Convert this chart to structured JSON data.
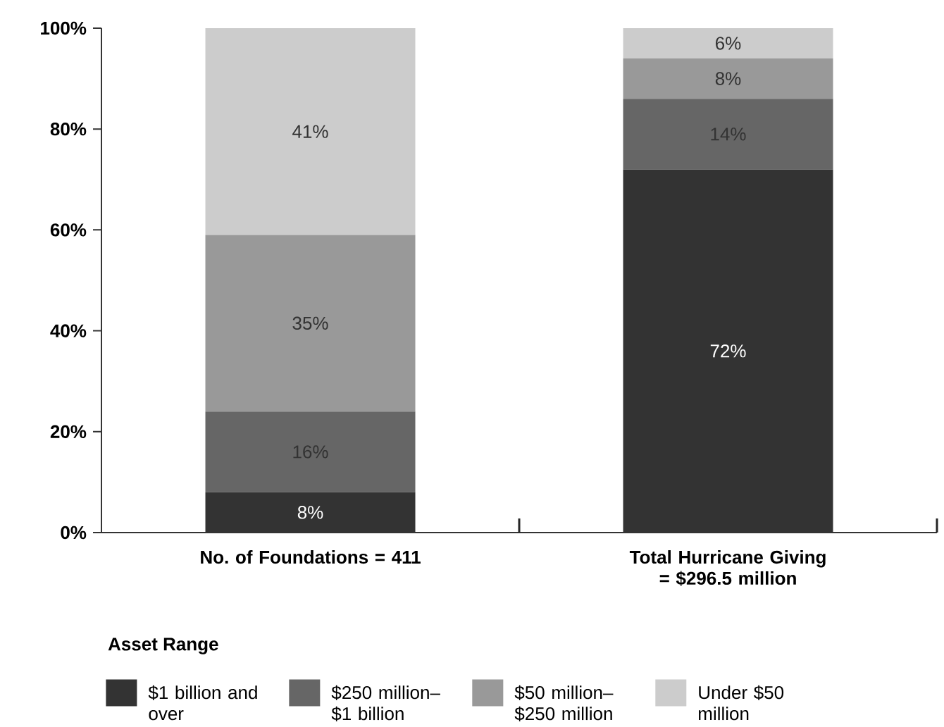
{
  "chart_data": {
    "type": "bar",
    "stacked": true,
    "categories": [
      "No. of Foundations = 411",
      "Total Hurricane Giving = $296.5 million"
    ],
    "series": [
      {
        "name": "$1 billion and over",
        "color": "#333333",
        "values": [
          8,
          72
        ],
        "value_labels": [
          "8%",
          "72%"
        ]
      },
      {
        "name": "$250 million– $1 billion",
        "color": "#666666",
        "values": [
          16,
          14
        ],
        "value_labels": [
          "16%",
          "14%"
        ]
      },
      {
        "name": "$50 million– $250 million",
        "color": "#999999",
        "values": [
          35,
          8
        ],
        "value_labels": [
          "35%",
          "8%"
        ]
      },
      {
        "name": "Under $50 million",
        "color": "#cccccc",
        "values": [
          41,
          6
        ],
        "value_labels": [
          "41%",
          "6%"
        ]
      }
    ],
    "ylim": [
      0,
      100
    ],
    "yticks": [
      {
        "value": 0,
        "label": "0%"
      },
      {
        "value": 20,
        "label": "20%"
      },
      {
        "value": 40,
        "label": "40%"
      },
      {
        "value": 60,
        "label": "60%"
      },
      {
        "value": 80,
        "label": "80%"
      },
      {
        "value": 100,
        "label": "100%"
      }
    ],
    "legend": "bottom",
    "legend_title": "Asset Range"
  }
}
